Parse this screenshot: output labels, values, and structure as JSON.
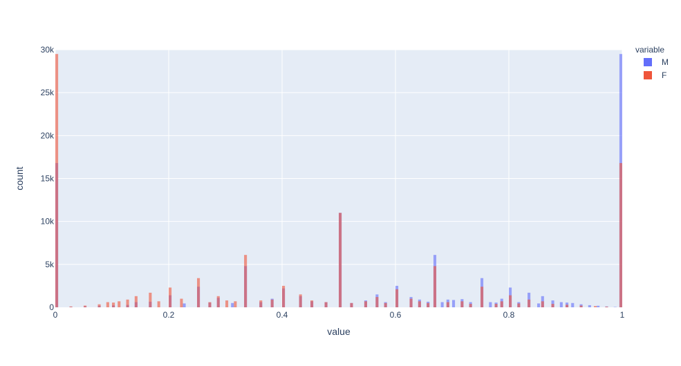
{
  "chart_data": {
    "type": "bar",
    "barmode": "overlay",
    "xlabel": "value",
    "ylabel": "count",
    "xlim": [
      0,
      1
    ],
    "ylim": [
      0,
      30000
    ],
    "bin_width": 0.005,
    "xticks": [
      {
        "value": 0,
        "label": "0"
      },
      {
        "value": 0.2,
        "label": "0.2"
      },
      {
        "value": 0.4,
        "label": "0.4"
      },
      {
        "value": 0.6,
        "label": "0.6"
      },
      {
        "value": 0.8,
        "label": "0.8"
      },
      {
        "value": 1,
        "label": "1"
      }
    ],
    "yticks": [
      {
        "value": 0,
        "label": "0"
      },
      {
        "value": 5000,
        "label": "5k"
      },
      {
        "value": 10000,
        "label": "10k"
      },
      {
        "value": 15000,
        "label": "15k"
      },
      {
        "value": 20000,
        "label": "20k"
      },
      {
        "value": 25000,
        "label": "25k"
      },
      {
        "value": 30000,
        "label": "30k"
      }
    ],
    "grid": true,
    "legend": {
      "title": "variable",
      "position": "top-right"
    },
    "series": [
      {
        "name": "M",
        "color": "#636efa",
        "opacity": 0.6,
        "points": [
          [
            0,
            16800
          ],
          [
            0.025,
            60
          ],
          [
            0.05,
            120
          ],
          [
            0.075,
            180
          ],
          [
            0.1,
            220
          ],
          [
            0.125,
            280
          ],
          [
            0.14,
            600
          ],
          [
            0.165,
            650
          ],
          [
            0.2,
            1400
          ],
          [
            0.225,
            450
          ],
          [
            0.25,
            2400
          ],
          [
            0.27,
            550
          ],
          [
            0.285,
            1100
          ],
          [
            0.31,
            500
          ],
          [
            0.333,
            4800
          ],
          [
            0.36,
            600
          ],
          [
            0.38,
            1000
          ],
          [
            0.4,
            2200
          ],
          [
            0.43,
            1300
          ],
          [
            0.45,
            700
          ],
          [
            0.475,
            600
          ],
          [
            0.5,
            11000
          ],
          [
            0.52,
            500
          ],
          [
            0.545,
            800
          ],
          [
            0.565,
            1500
          ],
          [
            0.58,
            600
          ],
          [
            0.6,
            2500
          ],
          [
            0.625,
            1200
          ],
          [
            0.64,
            900
          ],
          [
            0.655,
            650
          ],
          [
            0.667,
            6100
          ],
          [
            0.68,
            600
          ],
          [
            0.69,
            900
          ],
          [
            0.7,
            850
          ],
          [
            0.715,
            950
          ],
          [
            0.73,
            600
          ],
          [
            0.75,
            3400
          ],
          [
            0.765,
            600
          ],
          [
            0.775,
            550
          ],
          [
            0.785,
            1000
          ],
          [
            0.8,
            2300
          ],
          [
            0.815,
            600
          ],
          [
            0.833,
            1700
          ],
          [
            0.85,
            450
          ],
          [
            0.857,
            1300
          ],
          [
            0.875,
            800
          ],
          [
            0.89,
            600
          ],
          [
            0.9,
            550
          ],
          [
            0.91,
            500
          ],
          [
            0.925,
            350
          ],
          [
            0.94,
            250
          ],
          [
            0.955,
            180
          ],
          [
            0.97,
            100
          ],
          [
            0.985,
            40
          ],
          [
            0.995,
            29500
          ]
        ]
      },
      {
        "name": "F",
        "color": "#ef553b",
        "opacity": 0.6,
        "points": [
          [
            0,
            29500
          ],
          [
            0.025,
            100
          ],
          [
            0.05,
            200
          ],
          [
            0.075,
            350
          ],
          [
            0.09,
            600
          ],
          [
            0.1,
            550
          ],
          [
            0.11,
            700
          ],
          [
            0.125,
            900
          ],
          [
            0.14,
            1300
          ],
          [
            0.165,
            1700
          ],
          [
            0.18,
            700
          ],
          [
            0.2,
            2300
          ],
          [
            0.22,
            1000
          ],
          [
            0.25,
            3400
          ],
          [
            0.27,
            600
          ],
          [
            0.285,
            1300
          ],
          [
            0.3,
            800
          ],
          [
            0.315,
            700
          ],
          [
            0.333,
            6100
          ],
          [
            0.36,
            800
          ],
          [
            0.38,
            900
          ],
          [
            0.4,
            2500
          ],
          [
            0.43,
            1500
          ],
          [
            0.45,
            800
          ],
          [
            0.475,
            600
          ],
          [
            0.5,
            11000
          ],
          [
            0.52,
            500
          ],
          [
            0.545,
            700
          ],
          [
            0.565,
            1200
          ],
          [
            0.58,
            500
          ],
          [
            0.6,
            2100
          ],
          [
            0.625,
            1000
          ],
          [
            0.64,
            700
          ],
          [
            0.655,
            500
          ],
          [
            0.667,
            4800
          ],
          [
            0.69,
            600
          ],
          [
            0.715,
            700
          ],
          [
            0.73,
            400
          ],
          [
            0.75,
            2400
          ],
          [
            0.775,
            400
          ],
          [
            0.785,
            700
          ],
          [
            0.8,
            1400
          ],
          [
            0.815,
            450
          ],
          [
            0.833,
            900
          ],
          [
            0.857,
            700
          ],
          [
            0.875,
            400
          ],
          [
            0.9,
            300
          ],
          [
            0.925,
            200
          ],
          [
            0.95,
            150
          ],
          [
            0.97,
            80
          ],
          [
            0.995,
            16800
          ]
        ]
      }
    ]
  }
}
